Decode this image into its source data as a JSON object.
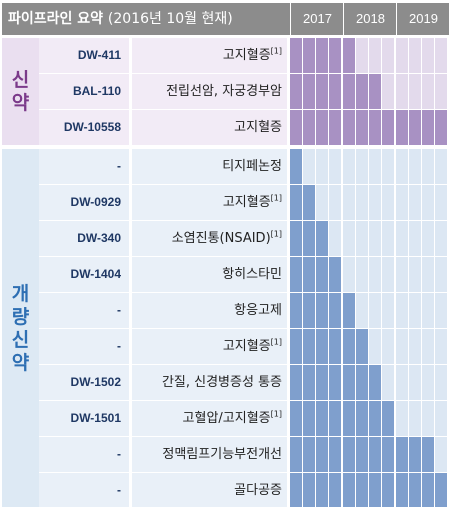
{
  "header": {
    "title": "파이프라인 요약",
    "subtitle": "(2016년 10월 현재)",
    "years": [
      "2017",
      "2018",
      "2019"
    ]
  },
  "colors": {
    "header_bg": "#8c8c8c",
    "new_drug_band": "#eadff0",
    "new_drug_row": "#f2ebf6",
    "new_drug_text": "#7b3a8a",
    "new_drug_bar": "#a891c3",
    "new_drug_empty": "#e3daec",
    "improved_band": "#dde9f4",
    "improved_row": "#e9f0f8",
    "improved_text": "#2e6fb3",
    "improved_bar": "#7f9fcd",
    "improved_empty": "#dce7f3"
  },
  "groups": [
    {
      "label": "신약",
      "theme": "new",
      "rows": [
        {
          "code": "DW-411",
          "indication": "고지혈증",
          "note": "[1]",
          "quarters_filled": 5
        },
        {
          "code": "BAL-110",
          "indication": "전립선암, 자궁경부암",
          "note": "",
          "quarters_filled": 7
        },
        {
          "code": "DW-10558",
          "indication": "고지혈증",
          "note": "",
          "quarters_filled": 12
        }
      ]
    },
    {
      "label": "개량신약",
      "theme": "improved",
      "rows": [
        {
          "code": "-",
          "indication": "티지페논정",
          "note": "",
          "quarters_filled": 1
        },
        {
          "code": "DW-0929",
          "indication": "고지혈증",
          "note": "[1]",
          "quarters_filled": 2
        },
        {
          "code": "DW-340",
          "indication": "소염진통(NSAID)",
          "note": "[1]",
          "quarters_filled": 3
        },
        {
          "code": "DW-1404",
          "indication": "항히스타민",
          "note": "",
          "quarters_filled": 4
        },
        {
          "code": "-",
          "indication": "항응고제",
          "note": "",
          "quarters_filled": 5
        },
        {
          "code": "-",
          "indication": "고지혈증",
          "note": "[1]",
          "quarters_filled": 6
        },
        {
          "code": "DW-1502",
          "indication": "간질, 신경병증성 통증",
          "note": "",
          "quarters_filled": 7
        },
        {
          "code": "DW-1501",
          "indication": "고혈압/고지혈증",
          "note": "[1]",
          "quarters_filled": 8
        },
        {
          "code": "-",
          "indication": "정맥림프기능부전개선",
          "note": "",
          "quarters_filled": 11
        },
        {
          "code": "-",
          "indication": "골다공증",
          "note": "",
          "quarters_filled": 12
        }
      ]
    }
  ]
}
